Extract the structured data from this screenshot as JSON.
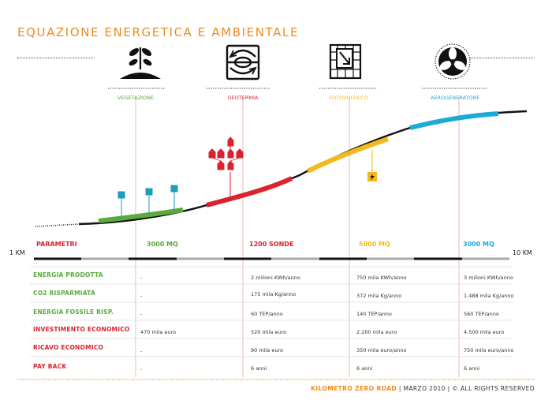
{
  "title": "EQUAZIONE ENERGETICA E AMBIENTALE",
  "colors": {
    "orange": "#ef8a1f",
    "green": "#5bab3c",
    "red": "#d9232e",
    "yellow": "#f2b81c",
    "blue": "#1eaad9",
    "teal": "#1a9dbf",
    "pink": "#e8a9ae"
  },
  "technologies": [
    {
      "label": "VEGETAZIONE",
      "icon": "plant-icon",
      "color": "#5bab3c"
    },
    {
      "label": "GEOTERMIA",
      "icon": "geothermal-icon",
      "color": "#d9232e"
    },
    {
      "label": "FOTOVOLTAICO",
      "icon": "solar-panel-icon",
      "color": "#f2b81c"
    },
    {
      "label": "AEROGENERATORE",
      "icon": "wind-turbine-icon",
      "color": "#1eaad9"
    }
  ],
  "scale": {
    "start": "1 KM",
    "end": "10 KM"
  },
  "params_header": "PARAMETRI",
  "columns": [
    {
      "label": "3000 MQ",
      "color": "#5bab3c"
    },
    {
      "label": "1200 SONDE",
      "color": "#d9232e"
    },
    {
      "label": "5000 MQ",
      "color": "#f2b81c"
    },
    {
      "label": "3000 MQ",
      "color": "#1eaad9"
    }
  ],
  "rows": [
    {
      "label": "ENERGIA PRODOTTA",
      "color": "#5bab3c",
      "values": [
        "-",
        "2 milioni KWh/anno",
        "750 mila KWh/anno",
        "3 milioni KWh/anno"
      ]
    },
    {
      "label": "CO2 RISPARMIATA",
      "color": "#5bab3c",
      "values": [
        "-",
        "175 mila Kg/anno",
        "372 mila Kg/anno",
        "1.488 mila Kg/anno"
      ]
    },
    {
      "label": "ENERGIA FOSSILE RISP.",
      "color": "#5bab3c",
      "values": [
        "-",
        "60 TEP/anno",
        "140 TEP/anno",
        "560 TEP/anno"
      ]
    },
    {
      "label": "INVESTIMENTO ECONOMICO",
      "color": "#d9232e",
      "values": [
        "470 mila euro",
        "520 mila euro",
        "2.200 mila euro",
        "4.500 mila euro"
      ]
    },
    {
      "label": "RICAVO ECONOMICO",
      "color": "#d9232e",
      "values": [
        "-",
        "90 mila euro",
        "350 mila euro/anno",
        "750 mila euro/anno"
      ]
    },
    {
      "label": "PAY BACK",
      "color": "#d9232e",
      "values": [
        "-",
        "6 anni",
        "6 anni",
        "6 anni"
      ]
    }
  ],
  "footer": {
    "brand": "KILOMETRO ZERO ROAD",
    "rest": " | MARZO 2010 | © ALL RIGHTS RESERVED"
  }
}
